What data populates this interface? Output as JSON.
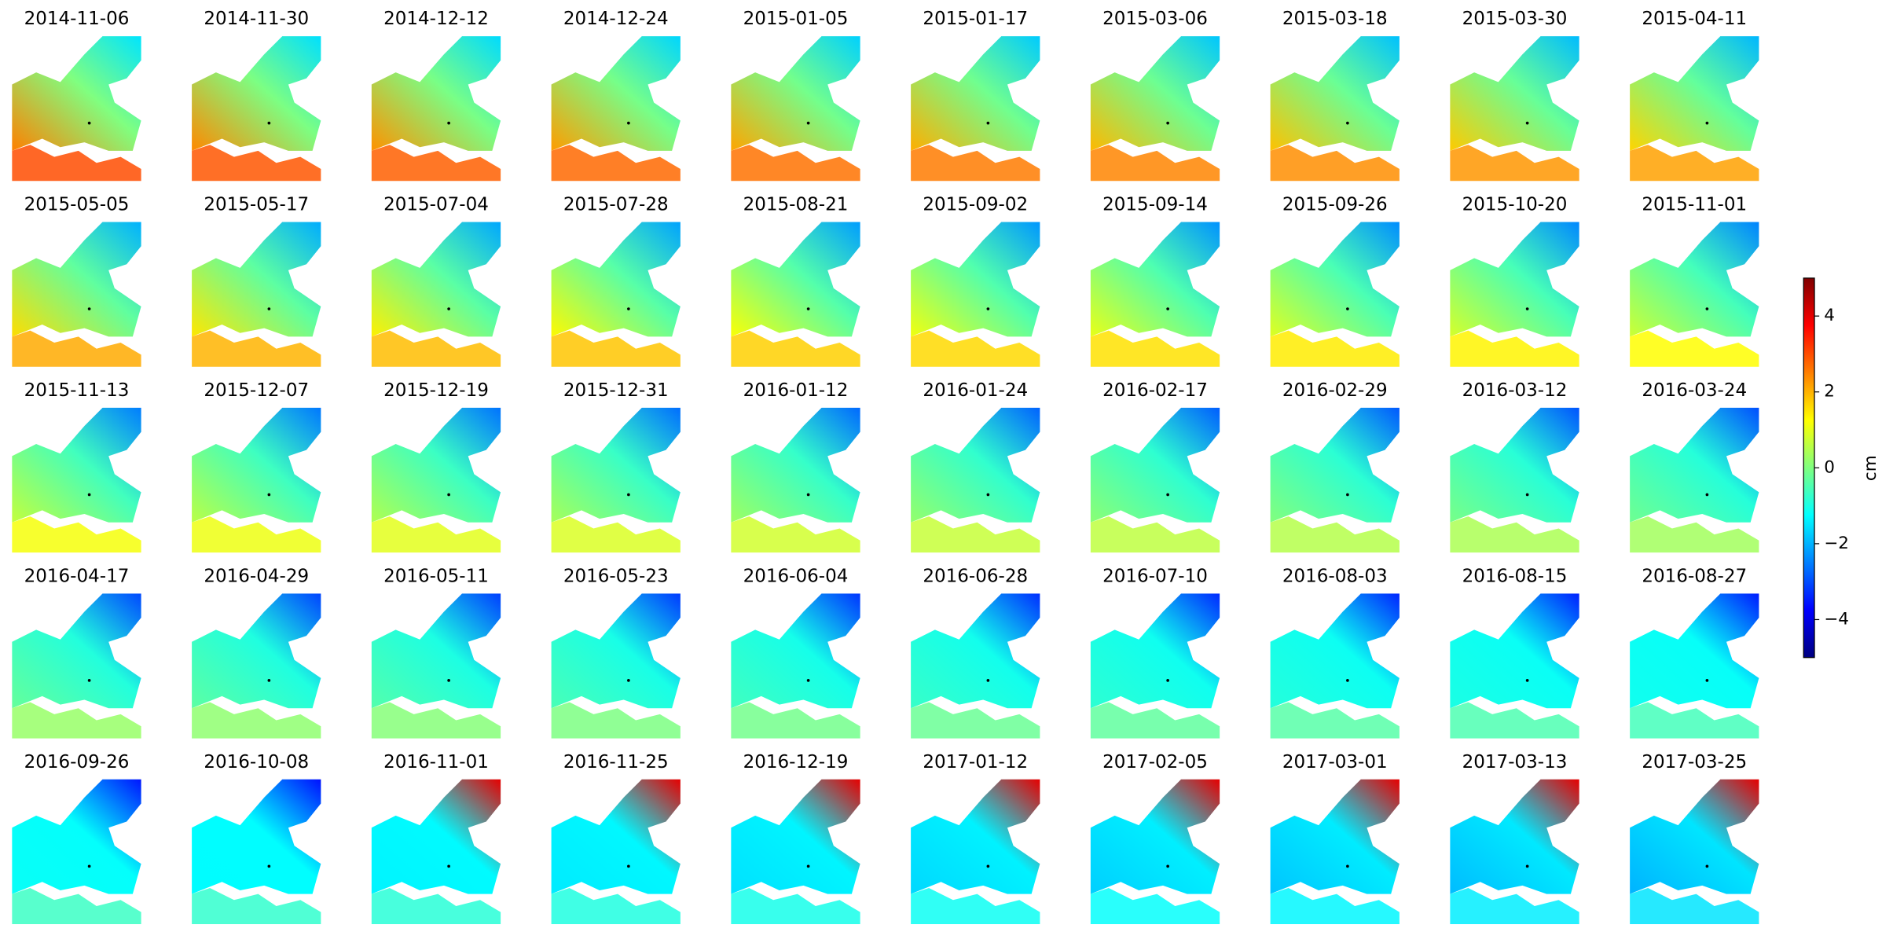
{
  "chart_data": {
    "type": "image-grid",
    "titles": [
      "2014-11-06",
      "2014-11-30",
      "2014-12-12",
      "2014-12-24",
      "2015-01-05",
      "2015-01-17",
      "2015-03-06",
      "2015-03-18",
      "2015-03-30",
      "2015-04-11",
      "2015-05-05",
      "2015-05-17",
      "2015-07-04",
      "2015-07-28",
      "2015-08-21",
      "2015-09-02",
      "2015-09-14",
      "2015-09-26",
      "2015-10-20",
      "2015-11-01",
      "2015-11-13",
      "2015-12-07",
      "2015-12-19",
      "2015-12-31",
      "2016-01-12",
      "2016-01-24",
      "2016-02-17",
      "2016-02-29",
      "2016-03-12",
      "2016-03-24",
      "2016-04-17",
      "2016-04-29",
      "2016-05-11",
      "2016-05-23",
      "2016-06-04",
      "2016-06-28",
      "2016-07-10",
      "2016-08-03",
      "2016-08-15",
      "2016-08-27",
      "2016-09-26",
      "2016-10-08",
      "2016-11-01",
      "2016-11-25",
      "2016-12-19",
      "2017-01-12",
      "2017-02-05",
      "2017-03-01",
      "2017-03-13",
      "2017-03-25"
    ],
    "colorbar": {
      "label": "cm",
      "lim": [
        -5,
        5
      ],
      "ticks": [
        {
          "value": -4,
          "label": "−4"
        },
        {
          "value": -2,
          "label": "−2"
        },
        0,
        2,
        4
      ]
    }
  }
}
